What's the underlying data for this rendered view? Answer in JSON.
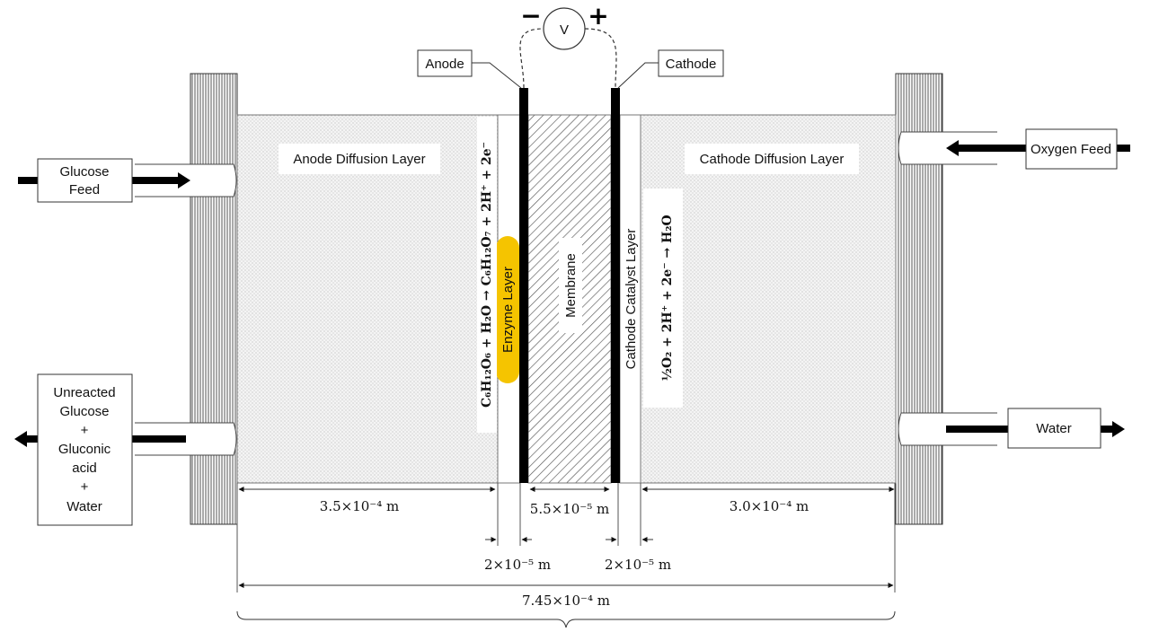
{
  "labels": {
    "anode": "Anode",
    "cathode": "Cathode",
    "voltmeter": "V",
    "minus": "−",
    "plus": "+",
    "glucose_feed_1": "Glucose",
    "glucose_feed_2": "Feed",
    "oxygen_feed": "Oxygen Feed",
    "water": "Water",
    "outlet_lines": [
      "Unreacted",
      "Glucose",
      "+",
      "Gluconic",
      "acid",
      "+",
      "Water"
    ],
    "anode_diffusion_layer": "Anode Diffusion Layer",
    "cathode_diffusion_layer": "Cathode Diffusion Layer",
    "enzyme_layer": "Enzyme Layer",
    "membrane": "Membrane",
    "cathode_catalyst_layer": "Cathode Catalyst Layer"
  },
  "equations": {
    "anode_reaction": "C₆H₁₂O₆ + H₂O → C₆H₁₂O₇ + 2H⁺ + 2e⁻",
    "cathode_reaction": "½O₂ + 2H⁺ + 2e⁻ → H₂O"
  },
  "dimensions": {
    "anode_diffusion": "3.5×10⁻⁴ m",
    "membrane": "5.5×10⁻⁵ m",
    "cathode_diffusion": "3.0×10⁻⁴ m",
    "enzyme_thickness": "2×10⁻⁵ m",
    "catalyst_thickness": "2×10⁻⁵ m",
    "total": "7.45×10⁻⁴ m"
  },
  "colors": {
    "enzyme": "#f5c400",
    "electrode": "#000000",
    "layer_fill": "#eeeeee"
  }
}
